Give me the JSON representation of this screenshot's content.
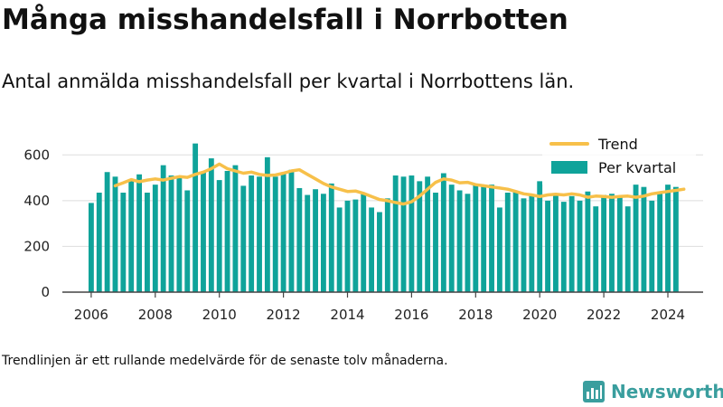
{
  "title": "Många misshandelsfall i Norrbotten",
  "subtitle": "Antal anmälda misshandelsfall per kvartal i Norrbottens län.",
  "footnote": "Trendlinjen är ett rullande medelvärde för de senaste tolv månaderna.",
  "brand": "Newsworthy",
  "colors": {
    "bars": "#0fa39a",
    "trend": "#f7c04a",
    "grid": "#dddddd",
    "axis": "#444444",
    "brand": "#3a9e9e"
  },
  "chart_data": {
    "type": "bar",
    "ylim": [
      0,
      700
    ],
    "xlim": [
      2005.1,
      2025.1
    ],
    "yticks": [
      0,
      200,
      400,
      600
    ],
    "xticks": [
      "2006",
      "2008",
      "2010",
      "2012",
      "2014",
      "2016",
      "2018",
      "2020",
      "2022",
      "2024"
    ],
    "xtick_values": [
      2006,
      2008,
      2010,
      2012,
      2014,
      2016,
      2018,
      2020,
      2022,
      2024
    ],
    "grid": true,
    "legend_position": "top-right",
    "series": [
      {
        "name": "Per kvartal",
        "type": "bar",
        "start": "2006 Q1",
        "values": [
          390,
          435,
          525,
          505,
          435,
          490,
          515,
          435,
          470,
          555,
          510,
          500,
          445,
          650,
          525,
          585,
          490,
          530,
          555,
          465,
          510,
          505,
          590,
          505,
          520,
          535,
          455,
          425,
          450,
          430,
          475,
          370,
          400,
          405,
          430,
          370,
          350,
          410,
          510,
          505,
          510,
          485,
          505,
          435,
          520,
          470,
          445,
          430,
          470,
          465,
          470,
          370,
          435,
          440,
          410,
          425,
          485,
          400,
          425,
          395,
          420,
          400,
          440,
          375,
          425,
          430,
          420,
          375,
          470,
          460,
          400,
          430,
          470,
          460
        ]
      },
      {
        "name": "Trend",
        "type": "line",
        "x": [
          2006.75,
          2007.0,
          2007.25,
          2007.5,
          2007.75,
          2008.0,
          2008.25,
          2008.5,
          2008.75,
          2009.0,
          2009.25,
          2009.5,
          2009.75,
          2010.0,
          2010.25,
          2010.5,
          2010.75,
          2011.0,
          2011.25,
          2011.5,
          2011.75,
          2012.0,
          2012.25,
          2012.5,
          2012.75,
          2013.0,
          2013.25,
          2013.5,
          2013.75,
          2014.0,
          2014.25,
          2014.5,
          2014.75,
          2015.0,
          2015.25,
          2015.5,
          2015.75,
          2016.0,
          2016.25,
          2016.5,
          2016.75,
          2017.0,
          2017.25,
          2017.5,
          2017.75,
          2018.0,
          2018.25,
          2018.5,
          2018.75,
          2019.0,
          2019.25,
          2019.5,
          2019.75,
          2020.0,
          2020.25,
          2020.5,
          2020.75,
          2021.0,
          2021.25,
          2021.5,
          2021.75,
          2022.0,
          2022.25,
          2022.5,
          2022.75,
          2023.0,
          2023.25,
          2023.5,
          2023.75,
          2024.0,
          2024.25,
          2024.5
        ],
        "values": [
          465,
          478,
          492,
          483,
          490,
          495,
          490,
          498,
          505,
          502,
          515,
          525,
          540,
          560,
          540,
          530,
          520,
          525,
          515,
          510,
          512,
          520,
          530,
          535,
          515,
          495,
          475,
          460,
          450,
          440,
          442,
          432,
          418,
          405,
          400,
          392,
          385,
          395,
          420,
          450,
          480,
          495,
          490,
          478,
          480,
          470,
          465,
          460,
          455,
          450,
          440,
          430,
          425,
          418,
          425,
          428,
          425,
          430,
          425,
          415,
          420,
          418,
          415,
          418,
          420,
          415,
          420,
          430,
          435,
          440,
          445,
          450
        ]
      }
    ]
  }
}
